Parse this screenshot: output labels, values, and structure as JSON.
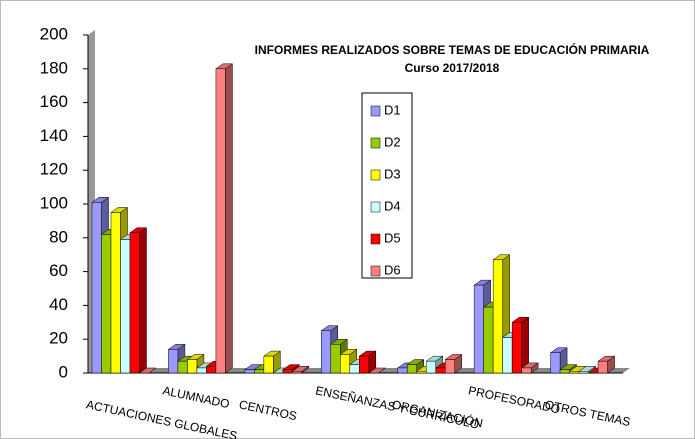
{
  "chart_data": {
    "type": "bar3d",
    "title": "INFORMES REALIZADOS SOBRE TEMAS DE EDUCACIÓN PRIMARIA",
    "subtitle": "Curso 2017/2018",
    "categories": [
      "ACTUACIONES GLOBALES",
      "ALUMNADO",
      "CENTROS",
      "ENSEÑANZAS Y CURRÍCULO",
      "ORGANIZACIÓN",
      "PROFESORADO",
      "OTROS TEMAS"
    ],
    "series": [
      {
        "name": "D1",
        "color": "#9999ff",
        "values": [
          101,
          14,
          2,
          25,
          3,
          52,
          12
        ]
      },
      {
        "name": "D2",
        "color": "#99cc00",
        "values": [
          82,
          7,
          2,
          17,
          5,
          39,
          2
        ]
      },
      {
        "name": "D3",
        "color": "#ffff00",
        "values": [
          95,
          8,
          10,
          11,
          1,
          67,
          1
        ]
      },
      {
        "name": "D4",
        "color": "#ccffff",
        "values": [
          79,
          3,
          0,
          5,
          7,
          21,
          1
        ]
      },
      {
        "name": "D5",
        "color": "#ff0000",
        "values": [
          83,
          4,
          2,
          10,
          3,
          30,
          0
        ]
      },
      {
        "name": "D6",
        "color": "#ff8080",
        "values": [
          0,
          180,
          1,
          0,
          8,
          3,
          7
        ]
      }
    ],
    "ylim": [
      0,
      200
    ],
    "yticks": [
      0,
      20,
      40,
      60,
      80,
      100,
      120,
      140,
      160,
      180,
      200
    ],
    "grid": false
  }
}
